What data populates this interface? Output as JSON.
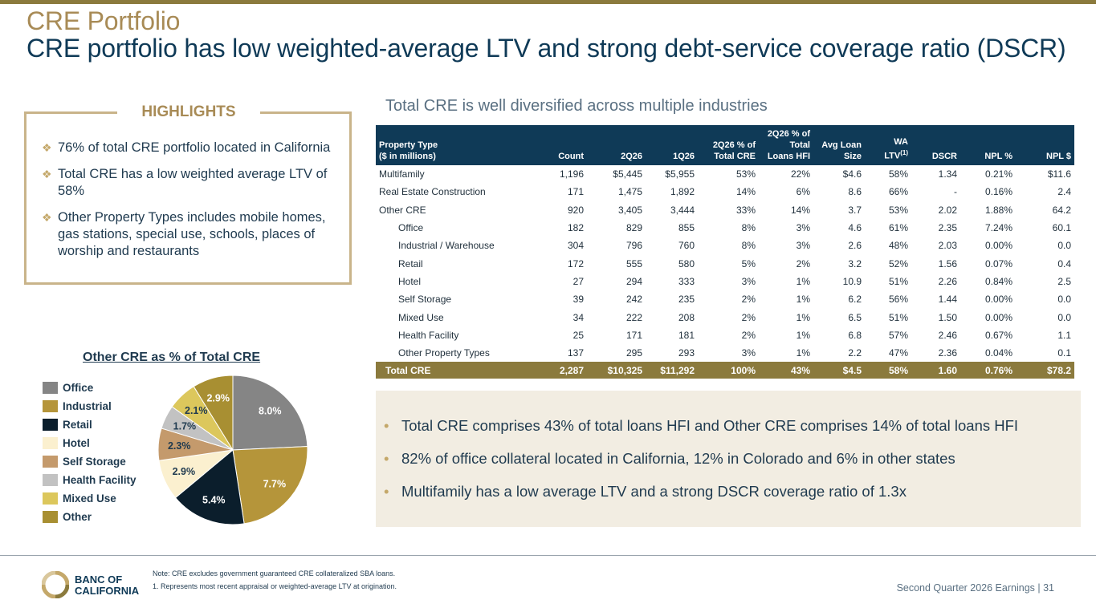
{
  "header": {
    "title": "CRE Portfolio",
    "subtitle": "CRE portfolio has low weighted-average LTV and strong debt-service coverage ratio (DSCR)"
  },
  "highlights": {
    "title": "HIGHLIGHTS",
    "items": [
      "76% of total CRE portfolio located in California",
      "Total CRE has a low weighted average LTV of 58%",
      "Other Property Types includes mobile homes, gas stations, special use, schools, places of worship and restaurants"
    ]
  },
  "table": {
    "title": "Total CRE is well diversified across multiple industries",
    "headers": {
      "property_type": [
        "Property Type",
        "($ in millions)"
      ],
      "count": "Count",
      "q2": "2Q26",
      "q1": "1Q26",
      "pct_cre": [
        "2Q26 % of",
        "Total CRE"
      ],
      "pct_loans": [
        "2Q26 % of",
        "Total",
        "Loans HFI"
      ],
      "avg_loan": [
        "Avg Loan",
        "Size"
      ],
      "wa_ltv": [
        "WA",
        "LTV",
        "(1)"
      ],
      "dscr": "DSCR",
      "npl_pct": "NPL %",
      "npl_dollar": "NPL $"
    },
    "rows": [
      {
        "name": "Multifamily",
        "indent": false,
        "cells": [
          "1,196",
          "$5,445",
          "$5,955",
          "53%",
          "22%",
          "$4.6",
          "58%",
          "1.34",
          "0.21%",
          "$11.6"
        ]
      },
      {
        "name": "Real Estate Construction",
        "indent": false,
        "cells": [
          "171",
          "1,475",
          "1,892",
          "14%",
          "6%",
          "8.6",
          "66%",
          "-",
          "0.16%",
          "2.4"
        ]
      },
      {
        "name": "Other CRE",
        "indent": false,
        "cells": [
          "920",
          "3,405",
          "3,444",
          "33%",
          "14%",
          "3.7",
          "53%",
          "2.02",
          "1.88%",
          "64.2"
        ]
      },
      {
        "name": "Office",
        "indent": true,
        "cells": [
          "182",
          "829",
          "855",
          "8%",
          "3%",
          "4.6",
          "61%",
          "2.35",
          "7.24%",
          "60.1"
        ]
      },
      {
        "name": "Industrial / Warehouse",
        "indent": true,
        "cells": [
          "304",
          "796",
          "760",
          "8%",
          "3%",
          "2.6",
          "48%",
          "2.03",
          "0.00%",
          "0.0"
        ]
      },
      {
        "name": "Retail",
        "indent": true,
        "cells": [
          "172",
          "555",
          "580",
          "5%",
          "2%",
          "3.2",
          "52%",
          "1.56",
          "0.07%",
          "0.4"
        ]
      },
      {
        "name": "Hotel",
        "indent": true,
        "cells": [
          "27",
          "294",
          "333",
          "3%",
          "1%",
          "10.9",
          "51%",
          "2.26",
          "0.84%",
          "2.5"
        ]
      },
      {
        "name": "Self Storage",
        "indent": true,
        "cells": [
          "39",
          "242",
          "235",
          "2%",
          "1%",
          "6.2",
          "56%",
          "1.44",
          "0.00%",
          "0.0"
        ]
      },
      {
        "name": "Mixed Use",
        "indent": true,
        "cells": [
          "34",
          "222",
          "208",
          "2%",
          "1%",
          "6.5",
          "51%",
          "1.50",
          "0.00%",
          "0.0"
        ]
      },
      {
        "name": "Health Facility",
        "indent": true,
        "cells": [
          "25",
          "171",
          "181",
          "2%",
          "1%",
          "6.8",
          "57%",
          "2.46",
          "0.67%",
          "1.1"
        ]
      },
      {
        "name": "Other Property Types",
        "indent": true,
        "cells": [
          "137",
          "295",
          "293",
          "3%",
          "1%",
          "2.2",
          "47%",
          "2.36",
          "0.04%",
          "0.1"
        ]
      }
    ],
    "total": {
      "name": "Total CRE",
      "cells": [
        "2,287",
        "$10,325",
        "$11,292",
        "100%",
        "43%",
        "$4.5",
        "58%",
        "1.60",
        "0.76%",
        "$78.2"
      ]
    }
  },
  "notes": {
    "items": [
      "Total CRE comprises 43% of total loans HFI and Other CRE comprises 14% of total loans HFI",
      "82% of office collateral located in California, 12% in Colorado and 6% in other states",
      "Multifamily has a low average LTV and a strong DSCR coverage ratio of 1.3x"
    ]
  },
  "chart_data": {
    "type": "pie",
    "title": "Other CRE as % of Total CRE",
    "categories": [
      "Office",
      "Industrial",
      "Retail",
      "Hotel",
      "Self Storage",
      "Health Facility",
      "Mixed Use",
      "Other"
    ],
    "values": [
      8.0,
      7.7,
      5.4,
      2.9,
      2.3,
      1.7,
      2.1,
      2.9
    ],
    "labels": [
      "8.0%",
      "7.7%",
      "5.4%",
      "2.9%",
      "2.3%",
      "1.7%",
      "2.1%",
      "2.9%"
    ],
    "colors": [
      "#858585",
      "#b5953a",
      "#0b1e2c",
      "#fbf0cf",
      "#c49a6c",
      "#c2c2c2",
      "#dcc75c",
      "#a88f32"
    ],
    "label_colors": [
      "#ffffff",
      "#ffffff",
      "#ffffff",
      "#1f3a4f",
      "#1f3a4f",
      "#1f3a4f",
      "#1f3a4f",
      "#ffffff"
    ],
    "legend_position": "left"
  },
  "footer": {
    "logo_line1": "BANC OF",
    "logo_line2": "CALIFORNIA",
    "note": "Note: CRE excludes government guaranteed CRE collateralized SBA loans.",
    "footnote": "1.  Represents most recent appraisal or weighted-average LTV at origination.",
    "page_label": "Second Quarter 2026 Earnings |  31"
  }
}
